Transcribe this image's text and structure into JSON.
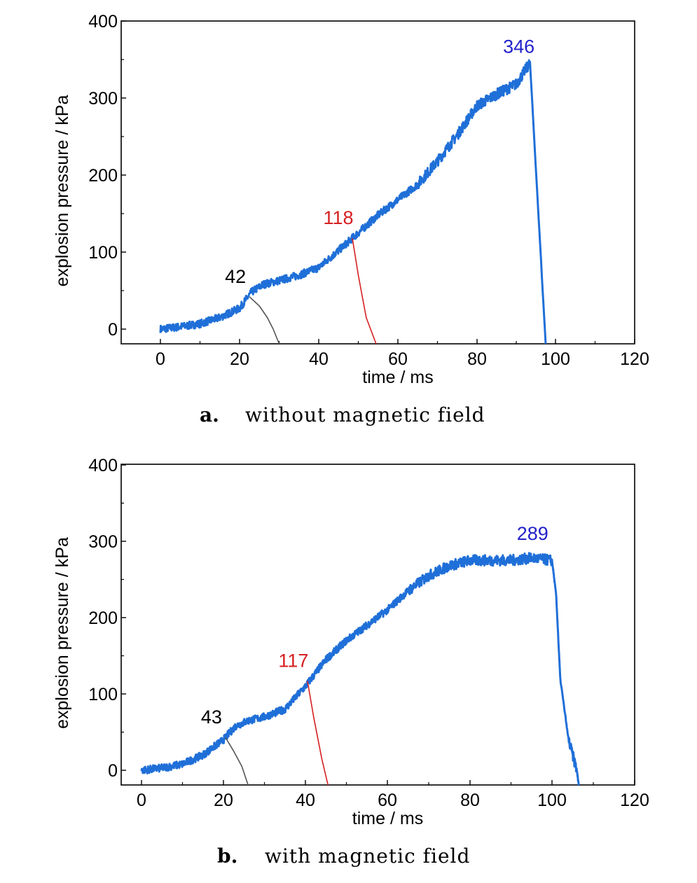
{
  "chart_data": [
    {
      "type": "line",
      "caption_letter": "a.",
      "caption_text": "without magnetic field",
      "xlabel": "time / ms",
      "ylabel": "explosion pressure / kPa",
      "xlim": [
        -10,
        120
      ],
      "ylim": [
        -20,
        400
      ],
      "xticks": [
        0,
        20,
        40,
        60,
        80,
        100,
        120
      ],
      "yticks": [
        0,
        100,
        200,
        300,
        400
      ],
      "grid": false,
      "series": [
        {
          "color": "#1f6fd8",
          "x": [
            0,
            5,
            10,
            15,
            20,
            23,
            26,
            30,
            35,
            40,
            45,
            50,
            55,
            60,
            65,
            70,
            75,
            80,
            85,
            90,
            93.5,
            97.5
          ],
          "y": [
            0,
            3,
            7,
            15,
            27,
            48,
            58,
            63,
            70,
            80,
            102,
            125,
            148,
            168,
            188,
            218,
            252,
            290,
            305,
            318,
            346,
            -20
          ]
        },
        {
          "color": "#555555",
          "x": [
            22.5,
            25,
            27,
            28.5,
            30
          ],
          "y": [
            42,
            30,
            15,
            0,
            -20
          ]
        },
        {
          "color": "#d62020",
          "x": [
            48.5,
            50,
            52,
            54.5
          ],
          "y": [
            118,
            70,
            15,
            -20
          ]
        }
      ],
      "annotations": [
        {
          "text": "42",
          "x": 22.5,
          "y": 42,
          "color": "#000000"
        },
        {
          "text": "118",
          "x": 48.5,
          "y": 118,
          "color": "#d62020"
        },
        {
          "text": "346",
          "x": 93.5,
          "y": 346,
          "color": "#2222cc"
        }
      ]
    },
    {
      "type": "line",
      "caption_letter": "b.",
      "caption_text": "with magnetic field",
      "xlabel": "time / ms",
      "ylabel": "explosion pressure / kPa",
      "xlim": [
        -5,
        120
      ],
      "ylim": [
        -20,
        400
      ],
      "xticks": [
        0,
        20,
        40,
        60,
        80,
        100,
        120
      ],
      "yticks": [
        0,
        100,
        200,
        300,
        400
      ],
      "grid": false,
      "series": [
        {
          "color": "#1f6fd8",
          "x": [
            0,
            5,
            10,
            15,
            20,
            23,
            26,
            30,
            35,
            40,
            45,
            50,
            55,
            60,
            65,
            70,
            75,
            80,
            85,
            90,
            95,
            100,
            101,
            102,
            104,
            106,
            106.5
          ],
          "y": [
            0,
            3,
            8,
            20,
            40,
            58,
            65,
            70,
            80,
            110,
            145,
            170,
            190,
            210,
            235,
            255,
            268,
            275,
            275,
            275,
            278,
            275,
            230,
            120,
            40,
            0,
            -20
          ]
        },
        {
          "color": "#555555",
          "x": [
            20.5,
            22.5,
            24.5,
            26
          ],
          "y": [
            43,
            25,
            5,
            -20
          ]
        },
        {
          "color": "#d62020",
          "x": [
            40.5,
            42,
            44,
            45.5
          ],
          "y": [
            117,
            70,
            15,
            -20
          ]
        }
      ],
      "annotations": [
        {
          "text": "43",
          "x": 20.5,
          "y": 43,
          "color": "#000000"
        },
        {
          "text": "117",
          "x": 40.5,
          "y": 117,
          "color": "#d62020"
        },
        {
          "text": "289",
          "x": 98,
          "y": 289,
          "color": "#2222cc"
        }
      ]
    }
  ]
}
